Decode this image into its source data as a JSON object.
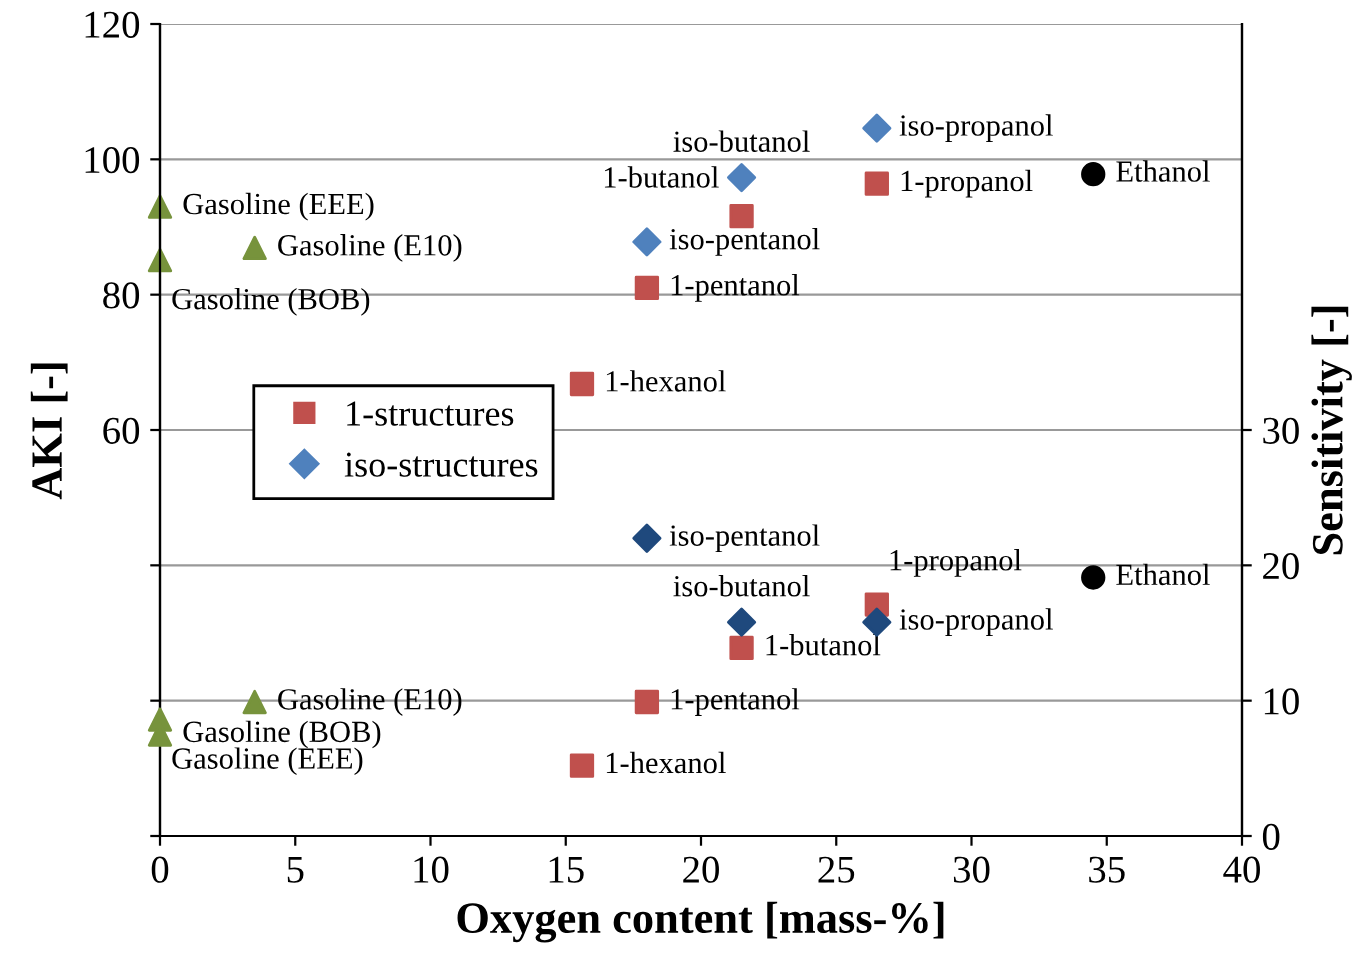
{
  "chart_data": {
    "type": "scatter",
    "xlabel": "Oxygen content [mass-%]",
    "ylabel": "AKI [-]",
    "y2label": "Sensitivity [-]",
    "xlim": [
      0,
      40
    ],
    "xticks": [
      0,
      5,
      10,
      15,
      20,
      25,
      30,
      35,
      40
    ],
    "ylim": [
      0,
      120
    ],
    "yticks": [
      {
        "value": 0,
        "label": null
      },
      {
        "value": 20,
        "label": null
      },
      {
        "value": 40,
        "label": null
      },
      60,
      80,
      100,
      120
    ],
    "y2lim": [
      0,
      60
    ],
    "y2ticks": [
      0,
      10,
      20,
      30
    ],
    "grid": "y",
    "legend": "left",
    "series": [
      {
        "name": "1-structures",
        "color": "#c0504d",
        "marker": "square",
        "x": [
          15.6,
          18.0,
          21.5,
          26.5
        ],
        "values": [
          66.8,
          81,
          91.6,
          96.4
        ]
      },
      {
        "name": "iso-structures",
        "color": "#4f81bd",
        "marker": "diamond",
        "x": [
          18.0,
          21.5,
          26.5
        ],
        "values": [
          87.8,
          97.3,
          104.6
        ]
      },
      {
        "color": "#77933c",
        "marker": "triangle",
        "x": [
          0,
          0,
          3.5
        ],
        "values": [
          93,
          85.1,
          86.9
        ]
      },
      {
        "color": "#000000",
        "marker": "circle",
        "x": [
          34.5
        ],
        "values": [
          97.8
        ]
      },
      {
        "color": "#c0504d",
        "marker": "square",
        "axis": "y2",
        "x": [
          15.6,
          18.0,
          21.5,
          26.5
        ],
        "values": [
          5.2,
          9.9,
          13.9,
          17.1
        ]
      },
      {
        "color": "#1f497d",
        "marker": "diamond",
        "axis": "y2",
        "x": [
          18.0,
          21.5,
          26.5
        ],
        "values": [
          22.0,
          15.8,
          15.8
        ]
      },
      {
        "color": "#77933c",
        "marker": "triangle",
        "axis": "y2",
        "x": [
          0,
          0,
          3.5
        ],
        "values": [
          8.6,
          7.5,
          9.9
        ]
      },
      {
        "color": "#000000",
        "marker": "circle",
        "axis": "y2",
        "x": [
          34.5
        ],
        "values": [
          19.1
        ]
      }
    ],
    "annotations": [
      {
        "text": "Gasoline (EEE)",
        "x": 0,
        "y": 93
      },
      {
        "text": "Gasoline (E10)",
        "x": 3.5,
        "y": 86.9
      },
      {
        "text": "Gasoline (BOB)",
        "x": 0,
        "y": 85.1
      },
      {
        "text": "iso-pentanol",
        "x": 18.0,
        "y": 87.8
      },
      {
        "text": "1-pentanol",
        "x": 18.0,
        "y": 81
      },
      {
        "text": "1-hexanol",
        "x": 15.6,
        "y": 66.8
      },
      {
        "text": "iso-butanol",
        "x": 21.5,
        "y": 97.3
      },
      {
        "text": "1-butanol",
        "x": 21.5,
        "y": 91.6
      },
      {
        "text": "iso-propanol",
        "x": 26.5,
        "y": 104.6
      },
      {
        "text": "1-propanol",
        "x": 26.5,
        "y": 96.4
      },
      {
        "text": "Ethanol",
        "x": 34.5,
        "y": 97.8
      },
      {
        "text": "iso-pentanol",
        "x": 18.0,
        "y": 44.0
      },
      {
        "text": "iso-butanol",
        "x": 21.5,
        "y": 31.6
      },
      {
        "text": "1-butanol",
        "x": 21.5,
        "y": 27.8
      },
      {
        "text": "iso-propanol",
        "x": 26.5,
        "y": 31.6
      },
      {
        "text": "1-propanol",
        "x": 26.5,
        "y": 34.2
      },
      {
        "text": "Ethanol",
        "x": 34.5,
        "y": 38.2
      },
      {
        "text": "1-pentanol",
        "x": 18.0,
        "y": 19.8
      },
      {
        "text": "1-hexanol",
        "x": 15.6,
        "y": 10.4
      },
      {
        "text": "Gasoline (EEE)",
        "x": 0,
        "y": 17.2
      },
      {
        "text": "Gasoline (E10)",
        "x": 3.5,
        "y": 19.8
      },
      {
        "text": "Gasoline (BOB)",
        "x": 0,
        "y": 15.0
      }
    ]
  }
}
